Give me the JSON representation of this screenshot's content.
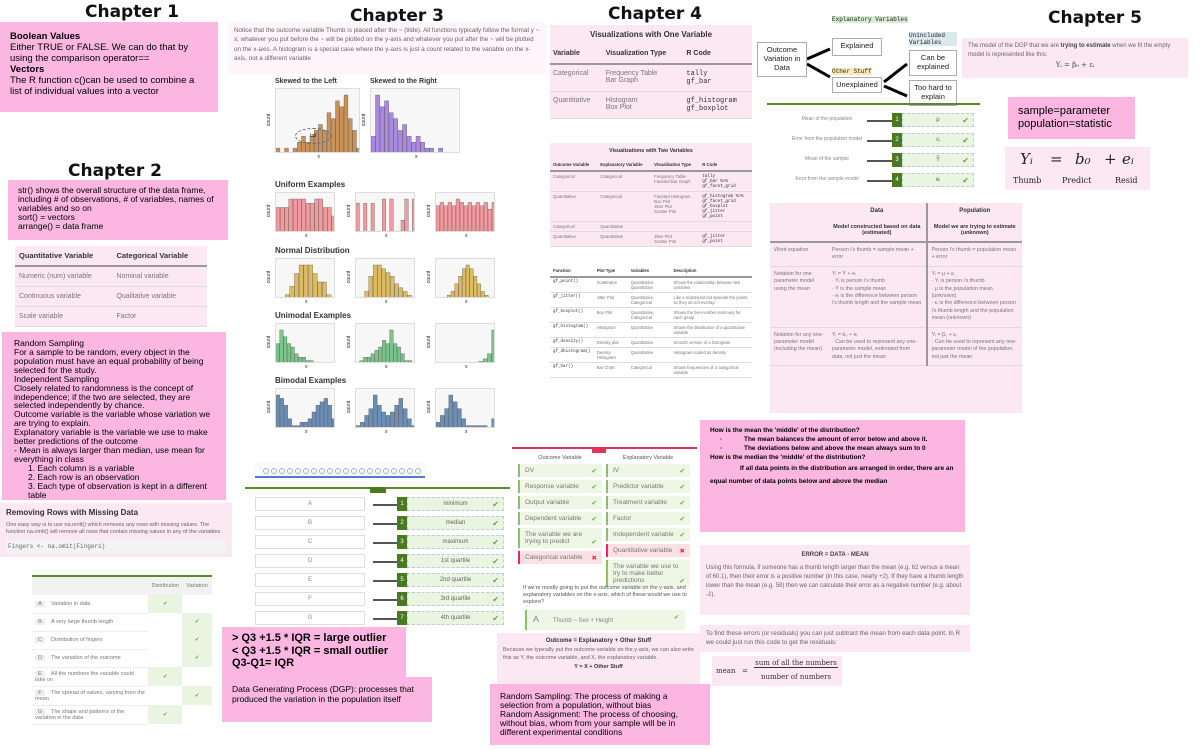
{
  "chapters": [
    "Chapter 1",
    "Chapter 2",
    "Chapter 3",
    "Chapter 4",
    "Chapter 5"
  ],
  "ch1": {
    "lines": [
      "Boolean Values",
      "Either TRUE or FALSE. We can do that by using the comparison operator==",
      "Vectors",
      "The R function c()can be used to combine a list of individual values into a vector"
    ]
  },
  "ch2": {
    "note": [
      "str() shows the overall structure of the data frame, including # of observations, # of variables, names of variables and so on",
      "sort() = vectors",
      "arrange() = data frame"
    ],
    "var_table": {
      "headers": [
        "Quantitative Variable",
        "Categorical Variable"
      ],
      "rows": [
        [
          "Numeric (num) variable",
          "Nominal variable"
        ],
        [
          "Continuous variable",
          "Qualitative variable"
        ],
        [
          "Scale variable",
          "Factor"
        ]
      ]
    },
    "sampling": [
      "Random Sampling",
      "For a sample to be random, every object in the population must have an equal probability of being selected for the study.",
      "Independent Sampling",
      "Closely related to randomness is the concept of independence; if the two are selected, they are selected independently by chance.",
      "Outcome variable is the variable whose variation we are trying to explain.",
      "Explanatory variable is the variable we use to make better predictions of the outcome",
      "- Mean is always larger than median, use mean for everything in class",
      "1.      Each column is a variable",
      "2.      Each row is an observation",
      "3.      Each type of observation is kept in a different table"
    ],
    "missing": {
      "title": "Removing Rows with Missing Data",
      "text": "One easy way is to use na.omit() which removes any rows with missing values. The function na.omit() will remove all rows that contain missing values in any of the variables.",
      "code": "Fingers <- na.omit(Fingers)"
    },
    "match_table": {
      "headers": [
        "",
        "Distribution",
        "Variation"
      ],
      "rows": [
        {
          "k": "A",
          "t": "Variation in data",
          "c": [
            true,
            false
          ]
        },
        {
          "k": "B",
          "t": "A very large thumb length",
          "c": [
            false,
            true
          ]
        },
        {
          "k": "C",
          "t": "Distribution of fingers",
          "c": [
            false,
            true
          ]
        },
        {
          "k": "D",
          "t": "The variation of the outcome",
          "c": [
            false,
            true
          ]
        },
        {
          "k": "E",
          "t": "All the numbers the variable could take on",
          "c": [
            true,
            false
          ]
        },
        {
          "k": "F",
          "t": "The spread of values, varying from the mean",
          "c": [
            false,
            true
          ]
        },
        {
          "k": "G",
          "t": "The shape and patterns of the variation in the data",
          "c": [
            true,
            false
          ]
        }
      ]
    }
  },
  "ch3": {
    "intro": "Notice that the outcome variable Thumb is placed after the ~ (tilde). All functions typically follow the format y ~ x; whatever you put before the ~ will be plotted on the y-axis and whatever you put after the ~ will be plotted on the x-axis. A histogram is a special case where the y-axis is just a count related to the variable on the x-axis, not a different variable",
    "plot_titles": [
      "Skewed to the Left",
      "Skewed to the Right",
      "Uniform Examples",
      "Normal Distribution",
      "Unimodal Examples",
      "Bimodal Examples"
    ],
    "axis_count": "count",
    "axis_x": "x",
    "tail": "tail",
    "matching": [
      {
        "k": "A",
        "n": "1",
        "v": "minimum"
      },
      {
        "k": "B",
        "n": "2",
        "v": "median"
      },
      {
        "k": "C",
        "n": "3",
        "v": "maximum"
      },
      {
        "k": "D",
        "n": "4",
        "v": "1st quartile"
      },
      {
        "k": "E",
        "n": "5",
        "v": "2nd quartile"
      },
      {
        "k": "F",
        "n": "6",
        "v": "3rd quartile"
      },
      {
        "k": "G",
        "n": "7",
        "v": "4th quartile"
      }
    ],
    "outliers": [
      "> Q3 +1.5 * IQR = large outlier",
      "< Q3 +1.5 * IQR = small outlier",
      "Q3-Q1= IQR"
    ],
    "dgp": "Data Generating Process (DGP): processes that produced the variation in the population itself"
  },
  "ch4": {
    "one_var": {
      "title": "Visualizations with One Variable",
      "headers": [
        "Variable",
        "Visualization Type",
        "R Code"
      ],
      "rows": [
        [
          "Categorical",
          "Frequency Table\nBar Graph",
          "tally\ngf_bar"
        ],
        [
          "Quantitative",
          "Histogram\nBox Plot",
          "gf_histogram\ngf_boxplot"
        ]
      ]
    },
    "two_var": {
      "title": "Visualizations with Two Variables",
      "headers": [
        "Outcome Variable",
        "Explanatory Variable",
        "Visualization Type",
        "R Code"
      ],
      "rows": [
        [
          "Categorical",
          "Categorical",
          "Frequency Table\nFaceted Bar Graph",
          "tally\ngf_bar %>%\n gf_facet_grid"
        ],
        [
          "Quantitative",
          "Categorical",
          "Faceted Histogram\nBox Plot\nJitter Plot\nScatter Plot",
          "gf_histogram %>%\n gf_facet_grid\ngf_boxplot\ngf_jitter\ngf_point"
        ],
        [
          "Categorical",
          "Quantitative",
          "",
          ""
        ],
        [
          "Quantitative",
          "Quantitative",
          "Jitter Plot\nScatter Plot",
          "gf_jitter\ngf_point"
        ]
      ]
    },
    "functions": {
      "headers": [
        "Function",
        "Plot Type",
        "Variables",
        "Description"
      ],
      "rows": [
        [
          "gf_point()",
          "Scatterplot",
          "Quantitative, Quantitative",
          "Shows the relationship between two variables"
        ],
        [
          "gf_jitter()",
          "Jitter Plot",
          "Quantitative, Categorical",
          "Like a scatterplot but spreads the points so they do not overlap"
        ],
        [
          "gf_boxplot()",
          "Box Plot",
          "Quantitative, Categorical",
          "Shows the five-number summary for each group"
        ],
        [
          "gf_histogram()",
          "Histogram",
          "Quantitative",
          "Shows the distribution of a quantitative variable"
        ],
        [
          "gf_density()",
          "Density plot",
          "Quantitative",
          "Smooth version of a histogram"
        ],
        [
          "gf_dhistogram()",
          "Density Histogram",
          "Quantitative",
          "Histogram scaled as density"
        ],
        [
          "gf_bar()",
          "Bar Chart",
          "Categorical",
          "Shows frequencies of a categorical variable"
        ]
      ]
    },
    "outcome_card": {
      "headers": [
        "Outcome Variable",
        "Explanatory Variable"
      ],
      "outcome": [
        {
          "t": "DV",
          "ok": true
        },
        {
          "t": "Response variable",
          "ok": true
        },
        {
          "t": "Output variable",
          "ok": true
        },
        {
          "t": "Dependent variable",
          "ok": true
        },
        {
          "t": "The variable we are trying to predict",
          "ok": true
        },
        {
          "t": "Categorical variable",
          "ok": false
        }
      ],
      "explanatory": [
        {
          "t": "IV",
          "ok": true
        },
        {
          "t": "Predictor variable",
          "ok": true
        },
        {
          "t": "Treatment variable",
          "ok": true
        },
        {
          "t": "Factor",
          "ok": true
        },
        {
          "t": "Independent variable",
          "ok": true
        },
        {
          "t": "Quantitative variable",
          "ok": false
        },
        {
          "t": "The variable we use to try to make better predictions",
          "ok": true
        }
      ]
    },
    "question": "If we're mostly going to put the outcome variable on the y-axis, and explanatory variables on the x-axis, which of these would we use to explore?",
    "answer_key": "A",
    "answer_text": "Thumb ~ Sex + Height",
    "word_eq": {
      "title": "Outcome = Explanatory + Other Stuff",
      "text": "Because we typically put the outcome variable on the y-axis, we can also write this as Y, the outcome variable, and X, the explanatory variable.",
      "eq": "Y = X + Other Stuff"
    },
    "random": [
      "Random Sampling: The process of making a selection from a population, without bias",
      "Random Assignment: The process of choosing, without bias, whom from your sample will be in different experimental conditions"
    ]
  },
  "ch5": {
    "diagram": {
      "root": "Outcome Variation in Data",
      "explained_tag": "Explanatory Variables",
      "explained": "Explained",
      "unexplained_tag": "Other Stuff",
      "unexplained": "Unexplained",
      "unincluded_tag": "Unincluded Variables",
      "can": "Can be explained",
      "hard": "Too hard to explain"
    },
    "symbol_match": [
      {
        "l": "Mean of the population",
        "n": "1",
        "v": "μ"
      },
      {
        "l": "Error from the population model",
        "n": "2",
        "v": "εᵢ"
      },
      {
        "l": "Mean of the sample",
        "n": "3",
        "v": "Ȳ"
      },
      {
        "l": "Error from the sample model",
        "n": "4",
        "v": "eᵢ"
      }
    ],
    "dgp_text_pre": "The model of the DGP that we are ",
    "dgp_text_bold": "trying to estimate",
    "dgp_text_post": " when we fit the empty model is represented like this:",
    "dgp_eq": "Yᵢ = β₀ + εᵢ",
    "sample_param": [
      "sample=parameter",
      "population=statistic"
    ],
    "formula": {
      "y": "Yᵢ",
      "b": "b₀",
      "e": "eᵢ",
      "labels": [
        "Thumb",
        "Predict",
        "Resid"
      ]
    },
    "dp_table": {
      "headers": [
        "",
        "Data",
        "Population"
      ],
      "sub": [
        "",
        "Model constructed based on data (estimated)",
        "Model we are trying to estimate (unknown)"
      ],
      "rows": [
        [
          "Word equation",
          "Person i's thumb = sample mean + error",
          "Person i's thumb = population mean + error"
        ],
        [
          "Notation for one parameter model using the mean",
          "Yᵢ = Ȳ + eᵢ\n· Yᵢ is person i's thumb\n· Ȳ is the sample mean\n· eᵢ is the difference between person i's thumb length and the sample mean",
          "Yᵢ = μ + εᵢ\n· Yᵢ is person i's thumb\n· μ is the population mean (unknown)\n· εᵢ is the difference between person i's thumb length and the population mean (unknown)"
        ],
        [
          "Notation for any one-parameter model (including the mean)",
          "Yᵢ = b₀ + eᵢ\n· Can be used to represent any one-parameter model, estimated from data, not just the mean",
          "Yᵢ = β₀ + εᵢ\n· Can be used to represent any one-parameter model of the population, not just the mean"
        ]
      ]
    },
    "middle": {
      "q1": "How is the mean the 'middle' of the distribution?",
      "b1": "The mean balances the amount of error below and above it.",
      "b2": "The deviations below and above the mean always sum to 0",
      "q2": "How is the median the 'middle' of the distribution?",
      "a2": "If all data points in the distribution are arranged in order, there are an equal number of data points below and above the median"
    },
    "error": {
      "title": "ERROR = DATA - MEAN",
      "text": "Using this formula, if someone has a thumb length larger than the mean (e.g. 62 versus a mean of 60.1), then their error is a positive number (in this case, nearly +2). If they have a thumb length lower than the mean (e.g. 58) then we can calculate their error as a negative number (e.g. about -2)."
    },
    "residuals": "To find these errors (or residuals) you can just subtract the mean from each data point. In R we could just run this code to get the residuals:",
    "mean_formula": {
      "lhs": "mean",
      "eq": "=",
      "num": "sum of all the numbers",
      "den": "number of numbers"
    }
  },
  "colors": {
    "pink": "#fbb7e2",
    "light_pink": "#fce8f3",
    "green": "#4a7a1f",
    "hist_brown": "#c8925a",
    "hist_purple": "#a98ae0",
    "hist_red": "#f29a9e",
    "hist_gold": "#dcbb62",
    "hist_green": "#7cc48a",
    "hist_blue": "#6c8eb5"
  }
}
